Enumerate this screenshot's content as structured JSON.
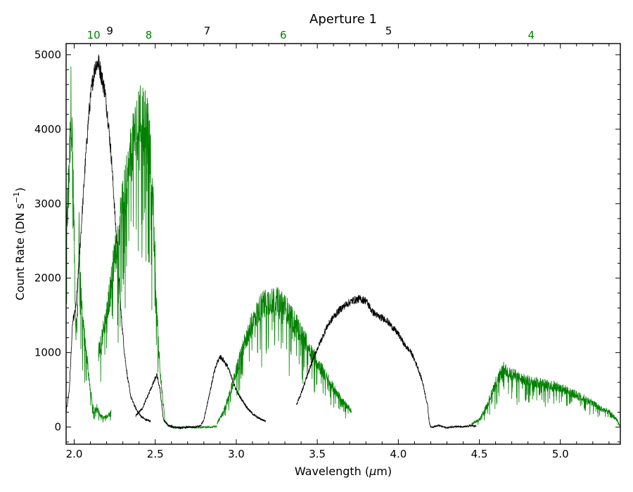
{
  "chart_data": {
    "type": "line",
    "title": "Aperture 1",
    "xlabel_prefix": "Wavelength (",
    "xlabel_symbol": "μ",
    "xlabel_suffix": "m)",
    "ylabel_prefix": "Count Rate (DN s",
    "ylabel_sup": "−1",
    "ylabel_suffix": ")",
    "xlim": [
      1.95,
      5.37
    ],
    "ylim": [
      -230,
      5150
    ],
    "x_ticks": [
      2.0,
      2.5,
      3.0,
      3.5,
      4.0,
      4.5,
      5.0
    ],
    "x_tick_labels": [
      "2.0",
      "2.5",
      "3.0",
      "3.5",
      "4.0",
      "4.5",
      "5.0"
    ],
    "y_ticks": [
      0,
      1000,
      2000,
      3000,
      4000,
      5000
    ],
    "y_tick_labels": [
      "0",
      "1000",
      "2000",
      "3000",
      "4000",
      "5000"
    ],
    "grid": false,
    "colors": {
      "black": "#000000",
      "green": "#008000"
    },
    "order_labels": [
      {
        "text": "10",
        "x": 2.12,
        "color": "#008000",
        "row": "low"
      },
      {
        "text": "9",
        "x": 2.22,
        "color": "#000000",
        "row": "high"
      },
      {
        "text": "8",
        "x": 2.46,
        "color": "#008000",
        "row": "low"
      },
      {
        "text": "7",
        "x": 2.82,
        "color": "#000000",
        "row": "high"
      },
      {
        "text": "6",
        "x": 3.29,
        "color": "#008000",
        "row": "low"
      },
      {
        "text": "5",
        "x": 3.94,
        "color": "#000000",
        "row": "high"
      },
      {
        "text": "4",
        "x": 4.82,
        "color": "#008000",
        "row": "low"
      }
    ],
    "series": [
      {
        "order": 10,
        "color": "#008000",
        "x": [
          1.95,
          1.97,
          1.98,
          1.99,
          2.0,
          2.01,
          2.02,
          2.03,
          2.04,
          2.05,
          2.06,
          2.08,
          2.1,
          2.12,
          2.14,
          2.16,
          2.18,
          2.2,
          2.22,
          2.23
        ],
        "y": [
          2500,
          3500,
          4400,
          3700,
          2500,
          1300,
          1500,
          2700,
          2000,
          1500,
          1250,
          900,
          500,
          200,
          280,
          160,
          120,
          150,
          180,
          200
        ]
      },
      {
        "order": 9,
        "color": "#000000",
        "x": [
          1.95,
          1.97,
          1.99,
          2.01,
          2.03,
          2.05,
          2.07,
          2.09,
          2.11,
          2.13,
          2.15,
          2.17,
          2.19,
          2.21,
          2.23,
          2.25,
          2.27,
          2.29,
          2.31,
          2.33,
          2.35,
          2.38,
          2.41,
          2.44,
          2.47
        ],
        "y": [
          200,
          500,
          1400,
          1600,
          2200,
          2900,
          3600,
          4200,
          4600,
          4850,
          4900,
          4700,
          4500,
          4100,
          3600,
          2900,
          2200,
          1500,
          1000,
          650,
          400,
          250,
          150,
          100,
          80
        ]
      },
      {
        "order": 8,
        "color": "#008000",
        "x": [
          2.15,
          2.2,
          2.25,
          2.3,
          2.34,
          2.37,
          2.4,
          2.42,
          2.44,
          2.46,
          2.48,
          2.5,
          2.51,
          2.52,
          2.53,
          2.54,
          2.55,
          2.56,
          2.58,
          2.6,
          2.65,
          2.7,
          2.75,
          2.8,
          2.85,
          2.88
        ],
        "y": [
          1000,
          1500,
          2300,
          3000,
          3500,
          3900,
          4100,
          4200,
          4100,
          3900,
          3300,
          2200,
          1600,
          1100,
          800,
          500,
          300,
          80,
          20,
          0,
          -10,
          0,
          -5,
          0,
          0,
          10
        ]
      },
      {
        "order": 7,
        "color": "#000000",
        "x": [
          2.38,
          2.42,
          2.46,
          2.49,
          2.51,
          2.53,
          2.55,
          2.58,
          2.62,
          2.66,
          2.7,
          2.74,
          2.78,
          2.8,
          2.83,
          2.86,
          2.88,
          2.9,
          2.92,
          2.95,
          2.98,
          3.01,
          3.04,
          3.07,
          3.1,
          3.13,
          3.16,
          3.18
        ],
        "y": [
          150,
          250,
          450,
          600,
          700,
          500,
          100,
          20,
          0,
          -10,
          0,
          -5,
          20,
          100,
          400,
          700,
          850,
          950,
          900,
          800,
          600,
          450,
          350,
          250,
          180,
          130,
          100,
          80
        ]
      },
      {
        "order": 6,
        "color": "#008000",
        "x": [
          2.88,
          2.92,
          2.96,
          3.0,
          3.04,
          3.08,
          3.12,
          3.16,
          3.2,
          3.24,
          3.28,
          3.32,
          3.36,
          3.4,
          3.44,
          3.48,
          3.52,
          3.56,
          3.6,
          3.64,
          3.68,
          3.71
        ],
        "y": [
          50,
          200,
          450,
          750,
          1050,
          1300,
          1500,
          1650,
          1700,
          1700,
          1650,
          1550,
          1400,
          1250,
          1100,
          950,
          800,
          650,
          520,
          400,
          290,
          220
        ]
      },
      {
        "order": 5,
        "color": "#000000",
        "x": [
          3.37,
          3.4,
          3.44,
          3.48,
          3.52,
          3.56,
          3.6,
          3.64,
          3.68,
          3.72,
          3.76,
          3.8,
          3.84,
          3.88,
          3.92,
          3.96,
          4.0,
          4.04,
          4.08,
          4.12,
          4.15,
          4.18,
          4.19,
          4.2,
          4.25,
          4.3,
          4.35,
          4.4,
          4.45,
          4.48
        ],
        "y": [
          300,
          450,
          700,
          950,
          1150,
          1350,
          1480,
          1580,
          1650,
          1700,
          1720,
          1700,
          1550,
          1480,
          1450,
          1350,
          1250,
          1100,
          1000,
          800,
          600,
          300,
          80,
          0,
          20,
          -10,
          10,
          0,
          20,
          10
        ]
      },
      {
        "order": 4,
        "color": "#008000",
        "x": [
          4.45,
          4.5,
          4.55,
          4.6,
          4.65,
          4.7,
          4.75,
          4.8,
          4.85,
          4.9,
          4.95,
          5.0,
          5.05,
          5.1,
          5.15,
          5.2,
          5.25,
          5.3,
          5.35,
          5.37
        ],
        "y": [
          40,
          100,
          300,
          600,
          780,
          720,
          650,
          620,
          600,
          580,
          560,
          520,
          480,
          430,
          380,
          320,
          250,
          200,
          100,
          0
        ]
      }
    ]
  }
}
